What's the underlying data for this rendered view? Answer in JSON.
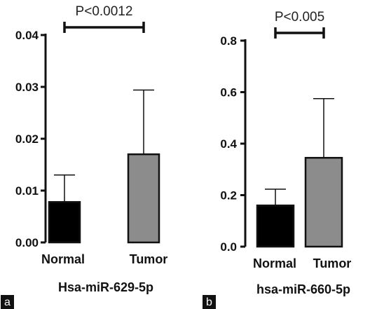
{
  "chart_data": [
    {
      "type": "bar",
      "panel": "a",
      "categories": [
        "Normal",
        "Tumor"
      ],
      "values": [
        0.0078,
        0.017
      ],
      "error_upper": [
        0.0052,
        0.0124
      ],
      "colors": [
        "#000000",
        "#8c8c8c"
      ],
      "xlabel": "Hsa-miR-629-5p",
      "ylabel": "",
      "ylim": [
        0,
        0.04
      ],
      "yticks": [
        0,
        0.01,
        0.02,
        0.03,
        0.04
      ],
      "ytick_labels": [
        "0.00",
        "0.01",
        "0.02",
        "0.03",
        "0.04"
      ],
      "significance": {
        "label": "P<0.0012",
        "between": [
          "Normal",
          "Tumor"
        ],
        "level": 0.041
      }
    },
    {
      "type": "bar",
      "panel": "b",
      "categories": [
        "Normal",
        "Tumor"
      ],
      "values": [
        0.16,
        0.345
      ],
      "error_upper": [
        0.063,
        0.23
      ],
      "colors": [
        "#000000",
        "#8c8c8c"
      ],
      "xlabel": "hsa-miR-660-5p",
      "ylabel": "",
      "ylim": [
        0,
        0.8
      ],
      "yticks": [
        0,
        0.2,
        0.4,
        0.6,
        0.8
      ],
      "ytick_labels": [
        "0.0",
        "0.2",
        "0.4",
        "0.6",
        "0.8"
      ],
      "significance": {
        "label": "P<0.005",
        "between": [
          "Normal",
          "Tumor"
        ],
        "level": 0.8
      }
    }
  ]
}
